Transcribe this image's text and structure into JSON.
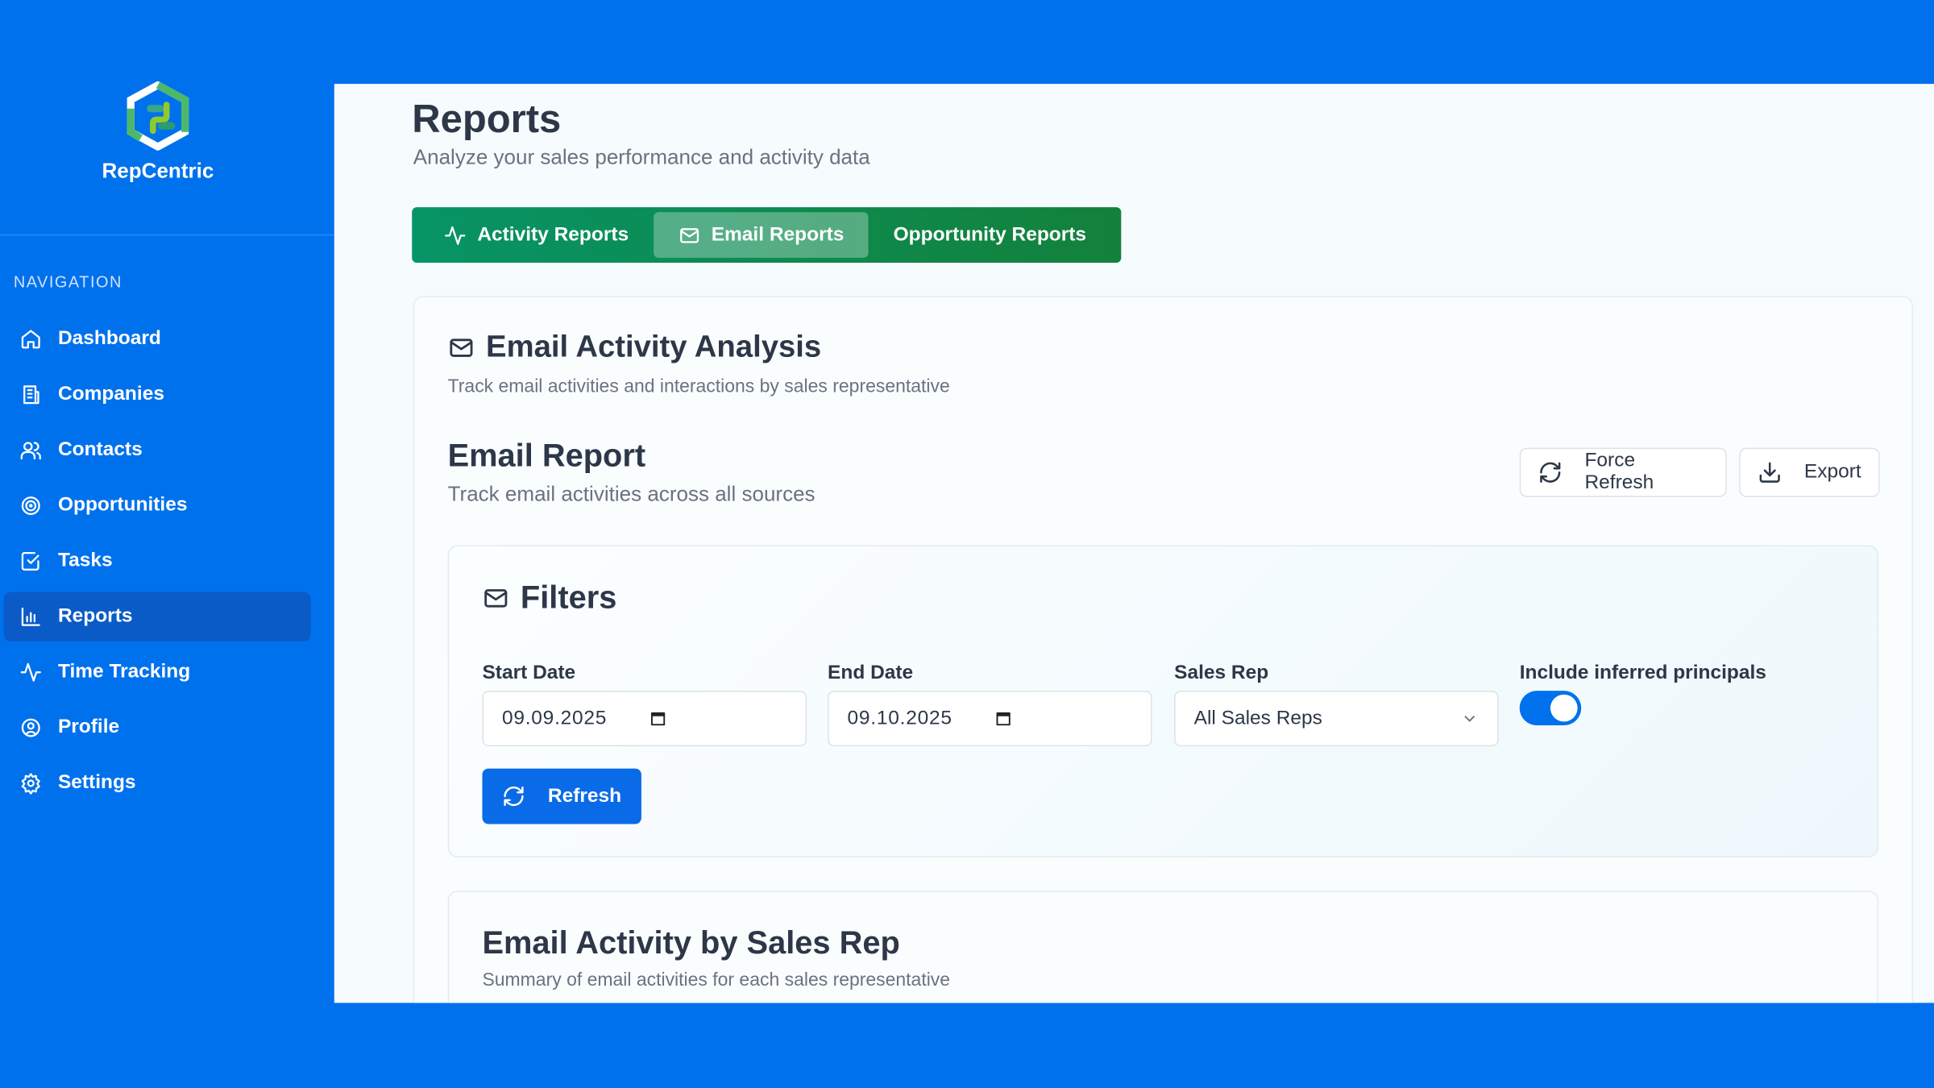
{
  "app": {
    "name": "RepCentric"
  },
  "sidebar": {
    "section_label": "NAVIGATION",
    "items": [
      {
        "label": "Dashboard",
        "icon": "home-icon"
      },
      {
        "label": "Companies",
        "icon": "building-icon"
      },
      {
        "label": "Contacts",
        "icon": "users-icon"
      },
      {
        "label": "Opportunities",
        "icon": "target-icon"
      },
      {
        "label": "Tasks",
        "icon": "check-square-icon"
      },
      {
        "label": "Reports",
        "icon": "bar-chart-icon",
        "active": true
      },
      {
        "label": "Time Tracking",
        "icon": "activity-icon"
      },
      {
        "label": "Profile",
        "icon": "user-circle-icon"
      },
      {
        "label": "Settings",
        "icon": "gear-icon"
      }
    ]
  },
  "page": {
    "title": "Reports",
    "subtitle": "Analyze your sales performance and activity data"
  },
  "tabs": [
    {
      "label": "Activity Reports",
      "icon": "activity-icon"
    },
    {
      "label": "Email Reports",
      "icon": "mail-icon",
      "active": true
    },
    {
      "label": "Opportunity Reports"
    }
  ],
  "analysis": {
    "title": "Email Activity Analysis",
    "subtitle": "Track email activities and interactions by sales representative"
  },
  "report": {
    "title": "Email Report",
    "subtitle": "Track email activities across all sources",
    "force_refresh": "Force Refresh",
    "export": "Export"
  },
  "filters": {
    "title": "Filters",
    "start_label": "Start Date",
    "start_value": "09.09.2025",
    "end_label": "End Date",
    "end_value": "09.10.2025",
    "rep_label": "Sales Rep",
    "rep_value": "All Sales Reps",
    "inferred_label": "Include inferred principals",
    "inferred_on": true,
    "refresh": "Refresh"
  },
  "by_rep": {
    "title": "Email Activity by Sales Rep",
    "subtitle": "Summary of email activities for each sales representative"
  },
  "colors": {
    "brand": "#0071ed",
    "tabs": "#079466",
    "sidebar_active": "#0a5bc7"
  }
}
